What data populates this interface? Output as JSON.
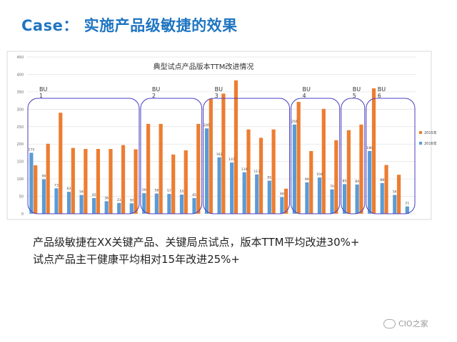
{
  "title": "Case： 实施产品级敏捷的效果",
  "caption": [
    "产品级敏捷在XX关键产品、关键局点试点，版本TTM平均改进30%+",
    "试点产品主干健康平均相对15年改进25%+"
  ],
  "watermark": "CIO之家",
  "chart_data": {
    "type": "bar",
    "title": "典型试点产品版本TTM改进情况",
    "ylim": [
      0,
      450
    ],
    "yticks": [
      0,
      50,
      100,
      150,
      200,
      250,
      300,
      350,
      400,
      450
    ],
    "grid": true,
    "legend_position": "right",
    "series": [
      {
        "name": "2015年",
        "color": "#ED7D31",
        "values": [
          139,
          201,
          290,
          189,
          186,
          186,
          186,
          197,
          185,
          258,
          258,
          170,
          182,
          258,
          330,
          345,
          383,
          242,
          218,
          242,
          72,
          321,
          180,
          301,
          211,
          240,
          256,
          360,
          140,
          112,
          null
        ]
      },
      {
        "name": "2016年",
        "color": "#5B9BD5",
        "values": [
          175,
          99,
          73,
          63,
          54,
          45,
          36,
          31,
          30,
          59,
          58,
          57,
          55,
          45,
          245,
          162,
          147,
          119,
          113,
          95,
          48,
          256,
          90,
          104,
          70,
          85,
          84,
          180,
          88,
          54,
          21
        ]
      }
    ],
    "data_labels_2016": [
      "175",
      "99",
      "73",
      "63",
      "54",
      "45",
      "36",
      "31",
      "30",
      "59",
      "58",
      "57",
      "55",
      "45",
      "245",
      "162",
      "147",
      "119",
      "113",
      "95",
      "48",
      "256",
      "90",
      "104",
      "70",
      "85",
      "84",
      "180",
      "88",
      "54",
      "21"
    ],
    "groups": [
      {
        "label": "BU\n1"
      },
      {
        "label": "BU\n2"
      },
      {
        "label": "BU\n3"
      },
      {
        "label": "BU\n4"
      },
      {
        "label": "BU\n5"
      },
      {
        "label": "BU\n6"
      }
    ]
  }
}
